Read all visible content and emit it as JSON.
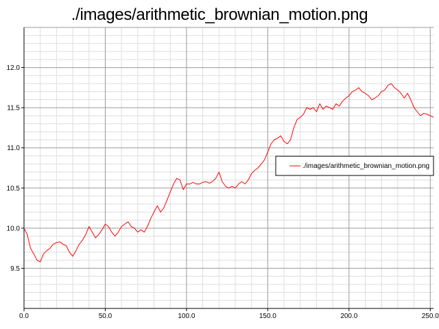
{
  "chart_data": {
    "type": "line",
    "title": "./images/arithmetic_brownian_motion.png",
    "xlabel": "",
    "ylabel": "",
    "xlim": [
      0,
      252
    ],
    "ylim": [
      9.0,
      12.5
    ],
    "x_ticks": [
      "0.0",
      "50.0",
      "100.0",
      "150.0",
      "200.0",
      "250.0"
    ],
    "y_ticks": [
      "9.5",
      "10.0",
      "10.5",
      "11.0",
      "11.5",
      "12.0"
    ],
    "grid": true,
    "legend": {
      "placement": "right",
      "entries": [
        "./images/arithmetic_brownian_motion.png"
      ]
    },
    "series": [
      {
        "name": "./images/arithmetic_brownian_motion.png",
        "color": "#ff0000",
        "x": [
          0,
          2,
          4,
          6,
          8,
          10,
          12,
          14,
          16,
          18,
          20,
          22,
          24,
          26,
          28,
          30,
          32,
          34,
          36,
          38,
          40,
          42,
          44,
          46,
          48,
          50,
          52,
          54,
          56,
          58,
          60,
          62,
          64,
          66,
          68,
          70,
          72,
          74,
          76,
          78,
          80,
          82,
          84,
          86,
          88,
          90,
          92,
          94,
          96,
          98,
          100,
          102,
          104,
          106,
          108,
          110,
          112,
          114,
          116,
          118,
          120,
          122,
          124,
          126,
          128,
          130,
          132,
          134,
          136,
          138,
          140,
          142,
          144,
          146,
          148,
          150,
          152,
          154,
          156,
          158,
          160,
          162,
          164,
          166,
          168,
          170,
          172,
          174,
          176,
          178,
          180,
          182,
          184,
          186,
          188,
          190,
          192,
          194,
          196,
          198,
          200,
          202,
          204,
          206,
          208,
          210,
          212,
          214,
          216,
          218,
          220,
          222,
          224,
          226,
          228,
          230,
          232,
          234,
          236,
          238,
          240,
          242,
          244,
          246,
          248,
          250,
          252
        ],
        "values": [
          10.0,
          9.92,
          9.75,
          9.68,
          9.6,
          9.58,
          9.68,
          9.72,
          9.75,
          9.8,
          9.82,
          9.83,
          9.8,
          9.78,
          9.7,
          9.65,
          9.72,
          9.8,
          9.85,
          9.92,
          10.02,
          9.95,
          9.88,
          9.92,
          9.98,
          10.05,
          10.02,
          9.95,
          9.9,
          9.95,
          10.02,
          10.05,
          10.08,
          10.02,
          10.0,
          9.95,
          9.98,
          9.95,
          10.02,
          10.12,
          10.2,
          10.28,
          10.2,
          10.25,
          10.35,
          10.45,
          10.55,
          10.62,
          10.6,
          10.48,
          10.55,
          10.55,
          10.57,
          10.55,
          10.55,
          10.57,
          10.58,
          10.56,
          10.58,
          10.62,
          10.7,
          10.58,
          10.52,
          10.5,
          10.52,
          10.5,
          10.55,
          10.58,
          10.55,
          10.6,
          10.68,
          10.72,
          10.75,
          10.8,
          10.85,
          10.95,
          11.05,
          11.1,
          11.12,
          11.15,
          11.08,
          11.05,
          11.1,
          11.25,
          11.35,
          11.38,
          11.42,
          11.5,
          11.48,
          11.5,
          11.45,
          11.55,
          11.48,
          11.52,
          11.5,
          11.48,
          11.55,
          11.52,
          11.58,
          11.62,
          11.65,
          11.7,
          11.72,
          11.75,
          11.7,
          11.68,
          11.65,
          11.6,
          11.62,
          11.65,
          11.7,
          11.72,
          11.78,
          11.8,
          11.75,
          11.72,
          11.68,
          11.62,
          11.68,
          11.6,
          11.5,
          11.45,
          11.4,
          11.43,
          11.42,
          11.4,
          11.38
        ]
      }
    ]
  }
}
